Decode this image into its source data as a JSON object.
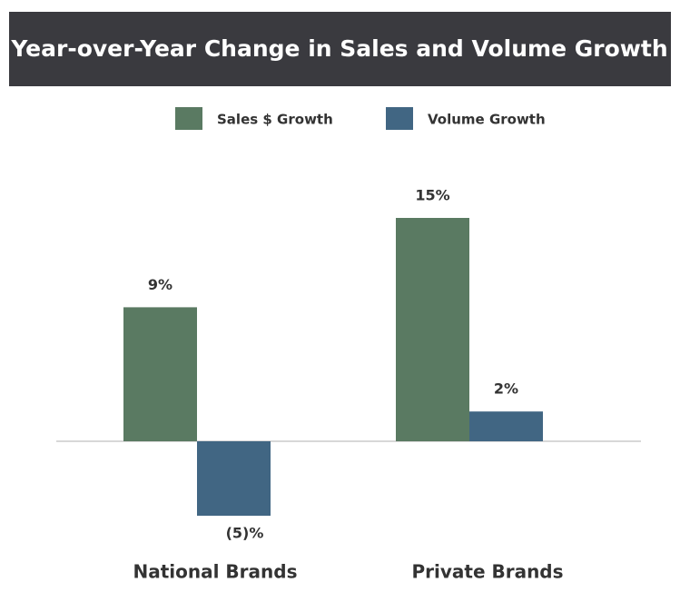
{
  "chart_data": {
    "type": "bar",
    "title": "Year-over-Year Change in Sales and Volume Growth",
    "categories": [
      "National Brands",
      "Private Brands"
    ],
    "series": [
      {
        "name": "Sales $ Growth",
        "color": "#5a7a62",
        "values": [
          9,
          15
        ],
        "value_labels": [
          "9%",
          "15%"
        ]
      },
      {
        "name": "Volume Growth",
        "color": "#416683",
        "values": [
          -5,
          2
        ],
        "value_labels": [
          "(5)%",
          "2%"
        ]
      }
    ],
    "ylim": [
      -6,
      17.5
    ],
    "legend": "top"
  }
}
